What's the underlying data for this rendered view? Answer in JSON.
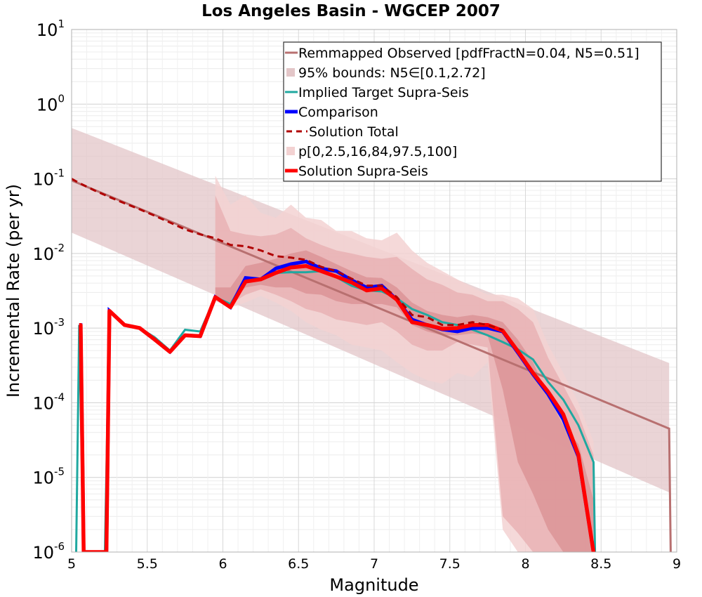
{
  "chart_data": {
    "type": "line",
    "title": "Los Angeles Basin - WGCEP 2007",
    "xlabel": "Magnitude",
    "ylabel": "Incremental Rate (per yr)",
    "xlim": [
      5,
      9
    ],
    "ylim": [
      1e-06,
      10
    ],
    "yscale": "log",
    "xticks": [
      "5",
      "5.5",
      "6",
      "6.5",
      "7",
      "7.5",
      "8",
      "8.5",
      "9"
    ],
    "yticks": [
      {
        "base": "10",
        "exp": "1"
      },
      {
        "base": "10",
        "exp": "0"
      },
      {
        "base": "10",
        "exp": "-1"
      },
      {
        "base": "10",
        "exp": "-2"
      },
      {
        "base": "10",
        "exp": "-3"
      },
      {
        "base": "10",
        "exp": "-4"
      },
      {
        "base": "10",
        "exp": "-5"
      },
      {
        "base": "10",
        "exp": "-6"
      }
    ],
    "legend": {
      "position": "top-right",
      "entries": [
        {
          "label": "Remmapped Observed [pdfFractN=0.04, N5=0.51]",
          "style": "line",
          "color": "#b87070"
        },
        {
          "label": "95% bounds: N5∈[0.1,2.72]",
          "style": "band",
          "color": "#e3c6c8"
        },
        {
          "label": "Implied Target Supra-Seis",
          "style": "line",
          "color": "#20a8a0"
        },
        {
          "label": "Comparison",
          "style": "line",
          "color": "#0000ff"
        },
        {
          "label": "Solution Total",
          "style": "dashed",
          "color": "#b00000"
        },
        {
          "label": "p[0,2.5,16,84,97.5,100]",
          "style": "band",
          "color": "#f3d2d2"
        },
        {
          "label": "Solution Supra-Seis",
          "style": "line",
          "color": "#ff0000"
        }
      ]
    },
    "series": {
      "remapped_observed": {
        "x": [
          5.0,
          8.95,
          8.96
        ],
        "y": [
          0.095,
          4.5e-05,
          1e-06
        ]
      },
      "bounds_95": {
        "x": [
          5.0,
          8.95
        ],
        "lower": [
          0.019,
          6.3e-06
        ],
        "upper": [
          0.48,
          0.00034
        ]
      },
      "percentile_bands": {
        "x": [
          5.95,
          6.05,
          6.15,
          6.25,
          6.35,
          6.45,
          6.55,
          6.65,
          6.75,
          6.85,
          6.95,
          7.05,
          7.15,
          7.25,
          7.35,
          7.45,
          7.55,
          7.65,
          7.75,
          7.85,
          7.95,
          8.05,
          8.15,
          8.25,
          8.35,
          8.45
        ],
        "outer_lower": [
          0.0023,
          0.0019,
          0.0022,
          0.0027,
          0.0022,
          0.0017,
          0.0012,
          0.00095,
          0.0008,
          0.0006,
          0.00055,
          0.0005,
          0.00035,
          0.00025,
          0.0002,
          0.00018,
          0.00025,
          0.00022,
          0.00035,
          2e-06,
          1e-06,
          1e-06,
          1e-06,
          1e-06,
          1e-06,
          1e-06
        ],
        "outer_upper": [
          0.11,
          0.045,
          0.06,
          0.035,
          0.03,
          0.045,
          0.03,
          0.028,
          0.02,
          0.02,
          0.016,
          0.015,
          0.019,
          0.011,
          0.0075,
          0.0058,
          0.0045,
          0.0035,
          0.0028,
          0.0028,
          0.0025,
          0.0018,
          0.0006,
          0.00025,
          0.0001,
          3e-05
        ],
        "mid_lower": [
          0.0025,
          0.0021,
          0.0028,
          0.0033,
          0.0028,
          0.0023,
          0.0018,
          0.0016,
          0.0013,
          0.0012,
          0.0011,
          0.0012,
          0.0009,
          0.0006,
          0.0005,
          0.0005,
          0.00065,
          0.0006,
          0.00055,
          3e-06,
          1.8e-06,
          1e-06,
          1e-06,
          1e-06,
          1e-06,
          1e-06
        ],
        "mid_upper": [
          0.06,
          0.02,
          0.018,
          0.017,
          0.018,
          0.022,
          0.016,
          0.013,
          0.011,
          0.01,
          0.009,
          0.0085,
          0.009,
          0.0062,
          0.0045,
          0.0038,
          0.003,
          0.0028,
          0.0023,
          0.0023,
          0.0018,
          0.0012,
          0.0004,
          0.00017,
          7e-05,
          2e-05
        ],
        "inner_lower": [
          0.0026,
          0.0022,
          0.0035,
          0.0038,
          0.0035,
          0.0035,
          0.0029,
          0.0028,
          0.0023,
          0.0021,
          0.0021,
          0.0021,
          0.0019,
          0.0011,
          0.0009,
          0.0008,
          0.0008,
          0.00085,
          0.0008,
          0.00015,
          1.6e-05,
          6e-06,
          2e-06,
          1e-06,
          1e-06,
          1e-06
        ],
        "inner_upper": [
          0.0035,
          0.0035,
          0.0068,
          0.0075,
          0.0085,
          0.01,
          0.011,
          0.009,
          0.0072,
          0.0058,
          0.0048,
          0.0047,
          0.0035,
          0.0022,
          0.0017,
          0.0015,
          0.0014,
          0.0015,
          0.0014,
          0.0012,
          0.0007,
          0.00035,
          0.00012,
          5e-05,
          2.8e-05,
          5e-06
        ]
      },
      "solution_total": {
        "x": [
          5.0,
          5.05,
          5.15,
          5.25,
          5.35,
          5.45,
          5.55,
          5.65,
          5.75,
          5.85,
          5.95,
          6.05,
          6.15,
          6.25,
          6.35,
          6.45,
          6.55,
          6.65,
          6.75,
          6.85,
          6.95,
          7.05,
          7.15,
          7.25,
          7.35,
          7.45,
          7.55,
          7.65,
          7.75,
          7.85
        ],
        "y": [
          0.1,
          0.088,
          0.07,
          0.057,
          0.047,
          0.039,
          0.032,
          0.026,
          0.021,
          0.018,
          0.016,
          0.013,
          0.0125,
          0.011,
          0.0092,
          0.0088,
          0.0082,
          0.0066,
          0.0058,
          0.0046,
          0.0037,
          0.0037,
          0.0026,
          0.0015,
          0.0014,
          0.0011,
          0.0011,
          0.0012,
          0.0011,
          0.00095
        ]
      },
      "implied_target": {
        "x": [
          5.03,
          5.05,
          5.08,
          5.22,
          5.25,
          5.35,
          5.45,
          5.55,
          5.65,
          5.75,
          5.85,
          5.95,
          6.05,
          6.15,
          6.25,
          6.35,
          6.45,
          6.55,
          6.65,
          6.75,
          6.85,
          6.95,
          7.05,
          7.15,
          7.25,
          7.35,
          7.45,
          7.55,
          7.65,
          7.75,
          7.85,
          7.95,
          8.05,
          8.15,
          8.25,
          8.35,
          8.45,
          8.46
        ],
        "y": [
          1e-06,
          0.0011,
          1e-06,
          1e-06,
          0.0017,
          0.0011,
          0.001,
          0.00075,
          0.0005,
          0.00095,
          0.0009,
          0.0026,
          0.0021,
          0.0045,
          0.0046,
          0.0055,
          0.0056,
          0.0056,
          0.0058,
          0.0048,
          0.0037,
          0.0032,
          0.0031,
          0.0025,
          0.0018,
          0.0015,
          0.0012,
          0.0011,
          0.00095,
          0.0008,
          0.00065,
          0.00052,
          0.00038,
          0.00019,
          0.00011,
          5e-05,
          1.6e-05,
          1e-06
        ]
      },
      "comparison": {
        "x": [
          5.05,
          5.06,
          5.08,
          5.22,
          5.23,
          5.25,
          5.35,
          5.45,
          5.55,
          5.65,
          5.75,
          5.85,
          5.95,
          6.05,
          6.15,
          6.25,
          6.35,
          6.45,
          6.55,
          6.65,
          6.75,
          6.85,
          6.95,
          7.05,
          7.15,
          7.25,
          7.35,
          7.45,
          7.55,
          7.65,
          7.75,
          7.85,
          7.95,
          8.05,
          8.15,
          8.25,
          8.35,
          8.45
        ],
        "y": [
          0.0011,
          0.0011,
          1e-06,
          1e-06,
          1e-06,
          0.0017,
          0.0011,
          0.001,
          0.0007,
          0.00048,
          0.0008,
          0.00078,
          0.0026,
          0.0019,
          0.0047,
          0.0045,
          0.0063,
          0.0072,
          0.0078,
          0.0063,
          0.0058,
          0.0044,
          0.0035,
          0.0037,
          0.0024,
          0.0013,
          0.0011,
          0.00096,
          0.0009,
          0.001,
          0.001,
          0.0009,
          0.00047,
          0.00024,
          0.00013,
          6e-05,
          1.9e-05,
          1e-06
        ]
      },
      "solution_supra": {
        "x": [
          5.05,
          5.06,
          5.08,
          5.22,
          5.23,
          5.25,
          5.35,
          5.45,
          5.55,
          5.65,
          5.75,
          5.85,
          5.95,
          6.05,
          6.15,
          6.25,
          6.35,
          6.45,
          6.55,
          6.65,
          6.75,
          6.85,
          6.95,
          7.05,
          7.15,
          7.25,
          7.35,
          7.45,
          7.55,
          7.65,
          7.75,
          7.85,
          7.95,
          8.05,
          8.15,
          8.25,
          8.35,
          8.45
        ],
        "y": [
          0.0011,
          0.0011,
          1e-06,
          1e-06,
          1e-06,
          0.0017,
          0.0011,
          0.001,
          0.0007,
          0.00048,
          0.0008,
          0.00078,
          0.0026,
          0.0019,
          0.0042,
          0.0045,
          0.0055,
          0.0065,
          0.0068,
          0.0058,
          0.0049,
          0.0041,
          0.0032,
          0.0034,
          0.0024,
          0.0012,
          0.0011,
          0.00098,
          0.001,
          0.0011,
          0.0011,
          0.00092,
          0.00049,
          0.00025,
          0.00014,
          7e-05,
          2e-05,
          1e-06
        ]
      }
    },
    "colors": {
      "remapped_observed": "#b87070",
      "bounds_95": "#e3c6c8",
      "band_outer": "#f3d2d2",
      "band_mid": "#e9b2b4",
      "band_inner": "#dc9496",
      "implied_target": "#20a8a0",
      "comparison": "#0000ff",
      "solution_total": "#b00000",
      "solution_supra": "#ff0000",
      "grid": "#dddddd"
    }
  }
}
